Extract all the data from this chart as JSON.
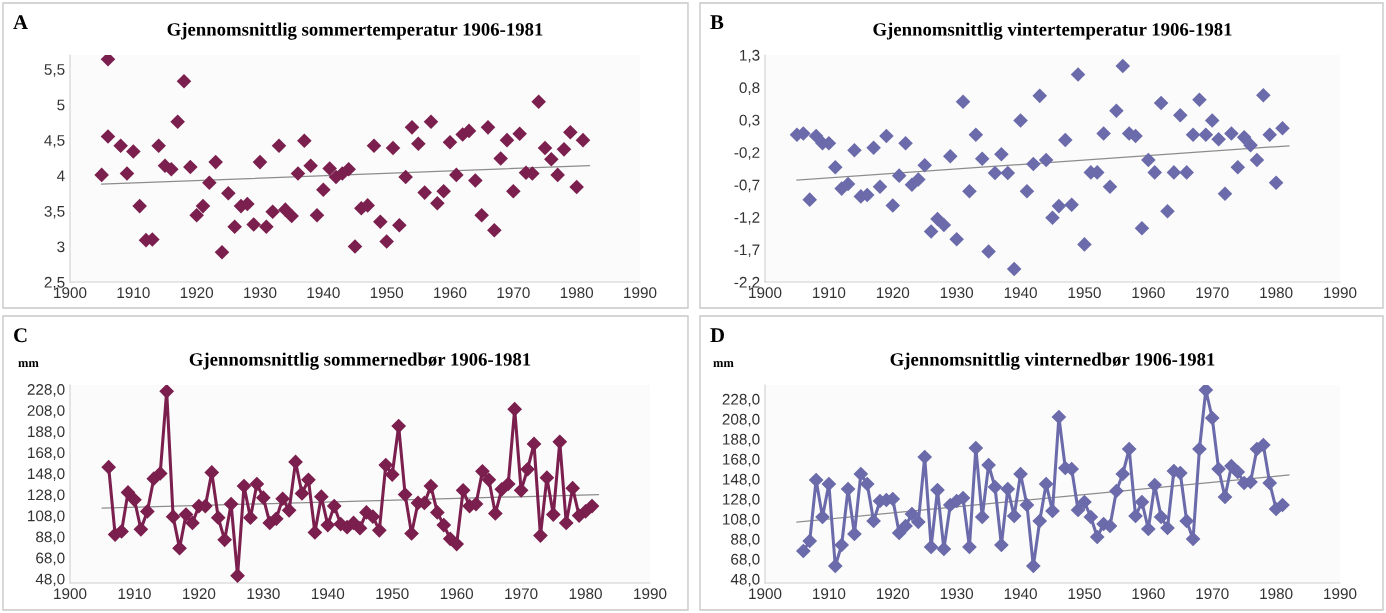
{
  "chart_data": [
    {
      "type": "scatter",
      "title": "Gjennomsnittlig sommertemperatur 1906-1981",
      "annotations": [
        "A"
      ],
      "xlim": [
        1900,
        1990
      ],
      "xticks": [
        1900,
        1910,
        1920,
        1930,
        1940,
        1950,
        1960,
        1970,
        1980,
        1990
      ],
      "ylim": [
        2.5,
        5.7
      ],
      "yticks": [
        {
          "value": 2.5,
          "label": "2,5"
        },
        3,
        {
          "value": 3.5,
          "label": "3,5"
        },
        4,
        {
          "value": 4.5,
          "label": "4,5"
        },
        5,
        {
          "value": 5.5,
          "label": "5,5"
        }
      ],
      "grid": false,
      "series": [
        {
          "color": "#7b1f4e",
          "marker": "diamond",
          "x": [
            1905,
            1906,
            1906,
            1908,
            1909,
            1910,
            1911,
            1912,
            1913,
            1914,
            1915,
            1916,
            1917,
            1918,
            1919,
            1920,
            1921,
            1922,
            1923,
            1924,
            1925,
            1926,
            1927,
            1928,
            1929,
            1930,
            1931,
            1932,
            1933,
            1934,
            1935,
            1936,
            1937,
            1938,
            1939,
            1940,
            1941,
            1942,
            1943,
            1944,
            1945,
            1946,
            1947,
            1948,
            1949,
            1950,
            1951,
            1952,
            1953,
            1954,
            1955,
            1956,
            1957,
            1958,
            1959,
            1960,
            1961,
            1962,
            1963,
            1964,
            1965,
            1966,
            1967,
            1968,
            1969,
            1970,
            1971,
            1972,
            1973,
            1974,
            1975,
            1976,
            1977,
            1978,
            1979,
            1980,
            1981
          ],
          "values": [
            4.01,
            5.64,
            4.55,
            4.42,
            4.03,
            4.34,
            3.57,
            3.09,
            3.1,
            4.42,
            4.14,
            4.09,
            4.76,
            5.33,
            4.12,
            3.44,
            3.57,
            3.9,
            4.19,
            2.92,
            3.75,
            3.28,
            3.57,
            3.6,
            3.31,
            4.19,
            3.28,
            3.49,
            4.42,
            3.52,
            3.43,
            4.03,
            4.49,
            4.14,
            3.44,
            3.8,
            4.1,
            3.98,
            4.03,
            4.09,
            3.0,
            3.54,
            3.58,
            4.42,
            3.35,
            3.07,
            4.39,
            3.3,
            3.98,
            4.68,
            4.45,
            3.76,
            4.76,
            3.61,
            3.78,
            4.47,
            4.01,
            4.58,
            4.63,
            3.93,
            3.44,
            4.68,
            3.23,
            4.24,
            4.5,
            3.78,
            4.59,
            4.04,
            4.03,
            5.04,
            4.39,
            4.23,
            4.01,
            4.37,
            4.61,
            3.84,
            4.5
          ]
        },
        {
          "type": "line",
          "color": "#8c8c8c",
          "marker": "none",
          "line_style": "solid",
          "x": [
            1905,
            1982
          ],
          "values": [
            3.88,
            4.14
          ]
        }
      ]
    },
    {
      "type": "scatter",
      "title": "Gjennomsnittlig vintertemperatur 1906-1981",
      "annotations": [
        "B"
      ],
      "xlim": [
        1900,
        1990
      ],
      "xticks": [
        1900,
        1910,
        1920,
        1930,
        1940,
        1950,
        1960,
        1970,
        1980,
        1990
      ],
      "ylim": [
        -2.2,
        1.3
      ],
      "yticks": [
        {
          "value": -2.2,
          "label": "-2,2"
        },
        {
          "value": -1.7,
          "label": "-1,7"
        },
        {
          "value": -1.2,
          "label": "-1,2"
        },
        {
          "value": -0.7,
          "label": "-0,7"
        },
        {
          "value": -0.2,
          "label": "-0,2"
        },
        {
          "value": 0.3,
          "label": "0,3"
        },
        {
          "value": 0.8,
          "label": "0,8"
        },
        {
          "value": 1.3,
          "label": "1,3"
        }
      ],
      "grid": false,
      "series": [
        {
          "color": "#6b6bab",
          "marker": "diamond",
          "x": [
            1905,
            1906,
            1907,
            1908,
            1909,
            1910,
            1911,
            1912,
            1913,
            1914,
            1915,
            1916,
            1917,
            1918,
            1919,
            1920,
            1921,
            1922,
            1923,
            1924,
            1925,
            1926,
            1927,
            1928,
            1929,
            1930,
            1931,
            1932,
            1933,
            1934,
            1935,
            1936,
            1937,
            1938,
            1939,
            1940,
            1941,
            1942,
            1943,
            1944,
            1945,
            1946,
            1947,
            1948,
            1949,
            1950,
            1951,
            1952,
            1953,
            1954,
            1955,
            1956,
            1957,
            1958,
            1959,
            1960,
            1961,
            1962,
            1963,
            1964,
            1965,
            1966,
            1967,
            1968,
            1969,
            1970,
            1971,
            1972,
            1973,
            1974,
            1975,
            1976,
            1977,
            1978,
            1979,
            1980,
            1981
          ],
          "values": [
            0.07,
            0.09,
            -0.93,
            0.05,
            -0.06,
            -0.06,
            -0.43,
            -0.76,
            -0.69,
            -0.17,
            -0.88,
            -0.86,
            -0.13,
            -0.73,
            0.05,
            -1.02,
            -0.56,
            -0.06,
            -0.7,
            -0.62,
            -0.4,
            -1.42,
            -1.23,
            -1.32,
            -0.26,
            -1.54,
            0.58,
            -0.8,
            0.07,
            -0.3,
            -1.73,
            -0.52,
            -0.23,
            -0.52,
            -2.0,
            0.29,
            -0.8,
            -0.38,
            0.67,
            -0.32,
            -1.21,
            -1.03,
            -0.01,
            -1.01,
            1.0,
            -1.62,
            -0.51,
            -0.51,
            0.09,
            -0.73,
            0.44,
            1.13,
            0.09,
            0.05,
            -1.37,
            -0.32,
            -0.51,
            0.56,
            -1.11,
            -0.51,
            0.37,
            -0.51,
            0.07,
            0.61,
            0.07,
            0.29,
            0.0,
            -0.84,
            0.09,
            -0.43,
            0.03,
            -0.09,
            -0.32,
            0.68,
            0.07,
            -0.67,
            0.17
          ]
        },
        {
          "type": "line",
          "color": "#8c8c8c",
          "marker": "none",
          "line_style": "solid",
          "x": [
            1905,
            1982
          ],
          "values": [
            -0.63,
            -0.1
          ]
        }
      ]
    },
    {
      "type": "line",
      "title": "Gjennomsnittlig sommernedbør 1906-1981",
      "annotations": [
        "C",
        "mm"
      ],
      "xlim": [
        1900,
        1990
      ],
      "xticks": [
        1900,
        1910,
        1920,
        1930,
        1940,
        1950,
        1960,
        1970,
        1980,
        1990
      ],
      "ylim": [
        44,
        232
      ],
      "yticks": [
        {
          "value": 48,
          "label": "48,0"
        },
        {
          "value": 68,
          "label": "68,0"
        },
        {
          "value": 88,
          "label": "88,0"
        },
        {
          "value": 108,
          "label": "108,0"
        },
        {
          "value": 128,
          "label": "128,0"
        },
        {
          "value": 148,
          "label": "148,0"
        },
        {
          "value": 168,
          "label": "168,0"
        },
        {
          "value": 188,
          "label": "188,0"
        },
        {
          "value": 208,
          "label": "208,0"
        },
        {
          "value": 228,
          "label": "228,0"
        }
      ],
      "line_style": "solid",
      "grid": false,
      "series": [
        {
          "color": "#7b1f4e",
          "marker": "diamond",
          "x": [
            1906,
            1907,
            1908,
            1909,
            1910,
            1911,
            1912,
            1913,
            1914,
            1915,
            1916,
            1917,
            1918,
            1919,
            1920,
            1921,
            1922,
            1923,
            1924,
            1925,
            1926,
            1927,
            1928,
            1929,
            1930,
            1931,
            1932,
            1933,
            1934,
            1935,
            1936,
            1937,
            1938,
            1939,
            1940,
            1941,
            1942,
            1943,
            1944,
            1945,
            1946,
            1947,
            1948,
            1949,
            1950,
            1951,
            1952,
            1953,
            1954,
            1955,
            1956,
            1957,
            1958,
            1959,
            1960,
            1961,
            1962,
            1963,
            1964,
            1965,
            1966,
            1967,
            1968,
            1969,
            1970,
            1971,
            1972,
            1973,
            1974,
            1975,
            1976,
            1977,
            1978,
            1979,
            1980,
            1981
          ],
          "values": [
            154,
            90,
            93,
            130,
            123,
            95,
            112,
            143,
            148,
            226,
            107,
            77,
            109,
            101,
            117,
            117,
            149,
            106,
            85,
            119,
            51,
            136,
            106,
            138,
            125,
            101,
            105,
            124,
            113,
            159,
            129,
            142,
            92,
            126,
            99,
            117,
            100,
            97,
            101,
            96,
            111,
            107,
            94,
            156,
            147,
            193,
            128,
            91,
            120,
            120,
            136,
            111,
            99,
            86,
            81,
            132,
            117,
            119,
            150,
            142,
            110,
            133,
            138,
            209,
            132,
            152,
            176,
            89,
            144,
            109,
            178,
            101,
            134,
            108,
            112,
            117
          ]
        },
        {
          "type": "line",
          "color": "#8c8c8c",
          "marker": "none",
          "line_style": "solid",
          "x": [
            1905,
            1982
          ],
          "values": [
            115,
            128
          ]
        }
      ]
    },
    {
      "type": "line",
      "title": "Gjennomsnittlig vinternedbør 1906-1981",
      "annotations": [
        "D",
        "mm"
      ],
      "xlim": [
        1900,
        1990
      ],
      "xticks": [
        1900,
        1910,
        1920,
        1930,
        1940,
        1950,
        1960,
        1970,
        1980,
        1990
      ],
      "ylim": [
        44,
        242
      ],
      "yticks": [
        {
          "value": 48,
          "label": "48,0"
        },
        {
          "value": 68,
          "label": "68,0"
        },
        {
          "value": 88,
          "label": "88,0"
        },
        {
          "value": 108,
          "label": "108,0"
        },
        {
          "value": 128,
          "label": "128,0"
        },
        {
          "value": 148,
          "label": "148,0"
        },
        {
          "value": 168,
          "label": "168,0"
        },
        {
          "value": 188,
          "label": "188,0"
        },
        {
          "value": 208,
          "label": "208,0"
        },
        {
          "value": 228,
          "label": "228,0"
        }
      ],
      "line_style": "solid",
      "grid": false,
      "series": [
        {
          "color": "#6b6bab",
          "marker": "diamond",
          "x": [
            1906,
            1907,
            1908,
            1909,
            1910,
            1911,
            1912,
            1913,
            1914,
            1915,
            1916,
            1917,
            1918,
            1919,
            1920,
            1921,
            1922,
            1923,
            1924,
            1925,
            1926,
            1927,
            1928,
            1929,
            1930,
            1931,
            1932,
            1933,
            1934,
            1935,
            1936,
            1937,
            1938,
            1939,
            1940,
            1941,
            1942,
            1943,
            1944,
            1945,
            1946,
            1947,
            1948,
            1949,
            1950,
            1951,
            1952,
            1953,
            1954,
            1955,
            1956,
            1957,
            1958,
            1959,
            1960,
            1961,
            1962,
            1963,
            1964,
            1965,
            1966,
            1967,
            1968,
            1969,
            1970,
            1971,
            1972,
            1973,
            1974,
            1975,
            1976,
            1977,
            1978,
            1979,
            1980,
            1981
          ],
          "values": [
            76,
            86,
            147,
            110,
            143,
            61,
            82,
            138,
            93,
            153,
            143,
            106,
            126,
            127,
            128,
            94,
            101,
            113,
            105,
            170,
            80,
            137,
            78,
            122,
            126,
            129,
            80,
            179,
            110,
            162,
            140,
            82,
            138,
            111,
            153,
            122,
            61,
            106,
            143,
            116,
            210,
            159,
            158,
            117,
            125,
            110,
            90,
            103,
            101,
            136,
            153,
            178,
            111,
            125,
            98,
            142,
            110,
            99,
            156,
            154,
            106,
            88,
            178,
            237,
            209,
            158,
            130,
            161,
            155,
            144,
            145,
            178,
            182,
            144,
            118,
            122
          ]
        },
        {
          "type": "line",
          "color": "#8c8c8c",
          "marker": "none",
          "line_style": "solid",
          "x": [
            1905,
            1982
          ],
          "values": [
            105,
            152
          ]
        }
      ]
    }
  ]
}
